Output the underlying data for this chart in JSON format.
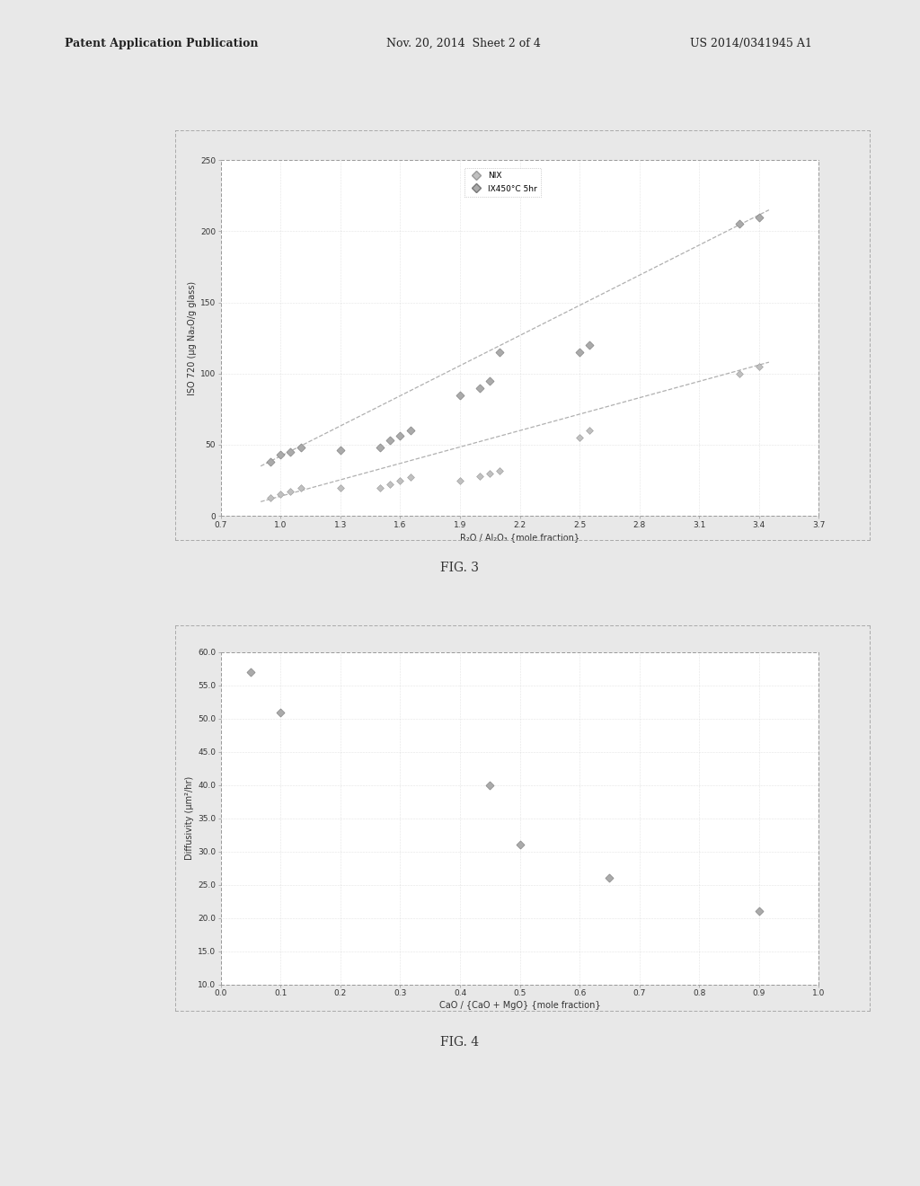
{
  "fig3": {
    "xlabel": "R₂O / Al₂O₃ {mole fraction}",
    "ylabel": "ISO 720 (μg Na₂O/g glass)",
    "xlim": [
      0.7,
      3.7
    ],
    "ylim": [
      0,
      250
    ],
    "xticks": [
      0.7,
      1.0,
      1.3,
      1.6,
      1.9,
      2.2,
      2.5,
      2.8,
      3.1,
      3.4,
      3.7
    ],
    "yticks": [
      0,
      50,
      100,
      150,
      200,
      250
    ],
    "series1_label": "NIX",
    "series1_x": [
      0.95,
      1.0,
      1.05,
      1.1,
      1.3,
      1.5,
      1.55,
      1.6,
      1.65,
      1.9,
      2.0,
      2.05,
      2.1,
      2.5,
      2.55,
      3.3,
      3.4
    ],
    "series1_y": [
      13,
      15,
      17,
      20,
      20,
      20,
      22,
      25,
      27,
      25,
      28,
      30,
      32,
      55,
      60,
      100,
      105
    ],
    "series1_trend_x": [
      0.9,
      3.45
    ],
    "series1_trend_y": [
      10,
      108
    ],
    "series2_label": "IX450°C 5hr",
    "series2_x": [
      0.95,
      1.0,
      1.05,
      1.1,
      1.3,
      1.5,
      1.55,
      1.6,
      1.65,
      1.9,
      2.0,
      2.05,
      2.1,
      2.5,
      2.55,
      3.3,
      3.4
    ],
    "series2_y": [
      38,
      43,
      45,
      48,
      46,
      48,
      53,
      56,
      60,
      85,
      90,
      95,
      115,
      115,
      120,
      205,
      210
    ],
    "series2_trend_x": [
      0.9,
      3.45
    ],
    "series2_trend_y": [
      35,
      215
    ],
    "marker_color": "#999999",
    "trend_color": "#b0b0b0",
    "bg_color": "#ffffff",
    "grid_color": "#cccccc"
  },
  "fig4": {
    "xlabel": "CaO / {CaO + MgO} {mole fraction}",
    "ylabel": "Diffusivity (μm²/hr)",
    "xlim": [
      0.0,
      1.0
    ],
    "ylim": [
      10.0,
      60.0
    ],
    "xticks": [
      0.0,
      0.1,
      0.2,
      0.3,
      0.4,
      0.5,
      0.6,
      0.7,
      0.8,
      0.9,
      1.0
    ],
    "yticks": [
      10.0,
      15.0,
      20.0,
      25.0,
      30.0,
      35.0,
      40.0,
      45.0,
      50.0,
      55.0,
      60.0
    ],
    "data_x": [
      0.05,
      0.1,
      0.45,
      0.5,
      0.65,
      0.9
    ],
    "data_y": [
      57.0,
      51.0,
      40.0,
      31.0,
      26.0,
      21.0
    ],
    "marker_color": "#999999",
    "bg_color": "#ffffff",
    "grid_color": "#cccccc"
  },
  "header_left": "Patent Application Publication",
  "header_mid": "Nov. 20, 2014  Sheet 2 of 4",
  "header_right": "US 2014/0341945 A1",
  "fig3_caption": "FIG. 3",
  "fig4_caption": "FIG. 4",
  "page_bg": "#e8e8e8",
  "chart_bg": "#f8f8f8"
}
